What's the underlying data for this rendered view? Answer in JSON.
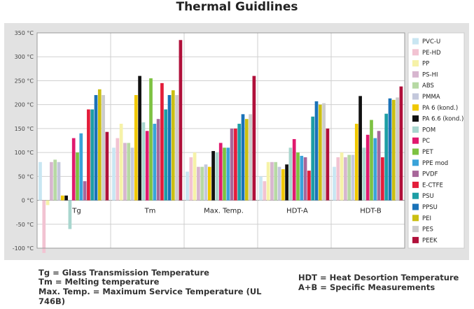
{
  "chart_data": {
    "type": "bar",
    "title": "Thermal Guidlines",
    "xlabel": "",
    "ylabel": "",
    "ylim": [
      -100,
      350
    ],
    "yticks": [
      -100,
      -50,
      0,
      50,
      100,
      150,
      200,
      250,
      300,
      350
    ],
    "ytick_labels": [
      "-100 °C",
      "-50 °C",
      "0 °C",
      "50 °C",
      "100 °C",
      "150 °C",
      "200 °C",
      "250 °C",
      "300 °C",
      "350 °C"
    ],
    "grid": true,
    "legend_position": "right",
    "categories": [
      "Tg",
      "Tm",
      "Max. Temp.",
      "HDT-A",
      "HDT-B"
    ],
    "series": [
      {
        "name": "PVC-U",
        "color": "#c9e6f2",
        "values": [
          80,
          110,
          60,
          50,
          70
        ]
      },
      {
        "name": "PE-HD",
        "color": "#f2c3d2",
        "values": [
          -110,
          130,
          90,
          40,
          90
        ]
      },
      {
        "name": "PP",
        "color": "#f6f2a8",
        "values": [
          -10,
          160,
          100,
          80,
          100
        ]
      },
      {
        "name": "PS-HI",
        "color": "#d7b6cf",
        "values": [
          80,
          120,
          70,
          80,
          90
        ]
      },
      {
        "name": "ABS",
        "color": "#b7d9a4",
        "values": [
          85,
          120,
          70,
          80,
          95
        ]
      },
      {
        "name": "PMMA",
        "color": "#c4c8dc",
        "values": [
          80,
          110,
          75,
          70,
          95
        ]
      },
      {
        "name": "PA 6 (kond.)",
        "color": "#f0c800",
        "values": [
          10,
          220,
          70,
          65,
          160
        ]
      },
      {
        "name": "PA 6.6 (kond.)",
        "color": "#111111",
        "values": [
          10,
          260,
          103,
          75,
          218
        ]
      },
      {
        "name": "POM",
        "color": "#a8d6ce",
        "values": [
          -60,
          163,
          100,
          110,
          110
        ]
      },
      {
        "name": "PC",
        "color": "#e0196e",
        "values": [
          130,
          145,
          120,
          128,
          137
        ]
      },
      {
        "name": "PET",
        "color": "#7dc242",
        "values": [
          100,
          255,
          110,
          100,
          168
        ]
      },
      {
        "name": "PPE mod",
        "color": "#3aa3d9",
        "values": [
          140,
          160,
          110,
          93,
          130
        ]
      },
      {
        "name": "PVDF",
        "color": "#a8679a",
        "values": [
          40,
          170,
          150,
          90,
          145
        ]
      },
      {
        "name": "E-CTFE",
        "color": "#e31d3a",
        "values": [
          190,
          245,
          150,
          62,
          90
        ]
      },
      {
        "name": "PSU",
        "color": "#1d9ea5",
        "values": [
          190,
          190,
          160,
          175,
          181
        ]
      },
      {
        "name": "PPSU",
        "color": "#1a72b8",
        "values": [
          220,
          220,
          180,
          207,
          213
        ]
      },
      {
        "name": "PEI",
        "color": "#cbbf12",
        "values": [
          232,
          230,
          170,
          200,
          210
        ]
      },
      {
        "name": "PES",
        "color": "#cccccc",
        "values": [
          220,
          220,
          180,
          203,
          215
        ]
      },
      {
        "name": "PEEK",
        "color": "#b0103a",
        "values": [
          143,
          335,
          260,
          150,
          238
        ]
      }
    ]
  },
  "footnotes": {
    "tg": "Tg = Glass Transmission Temperature",
    "tm": "Tm = Melting temperature",
    "max_temp_line1": "Max. Temp. = Maximum Service Temperature (UL",
    "max_temp_line2": "746B)",
    "hdt": "HDT = Heat Desortion Temperature",
    "ab": "A+B = Specific Measurements"
  }
}
